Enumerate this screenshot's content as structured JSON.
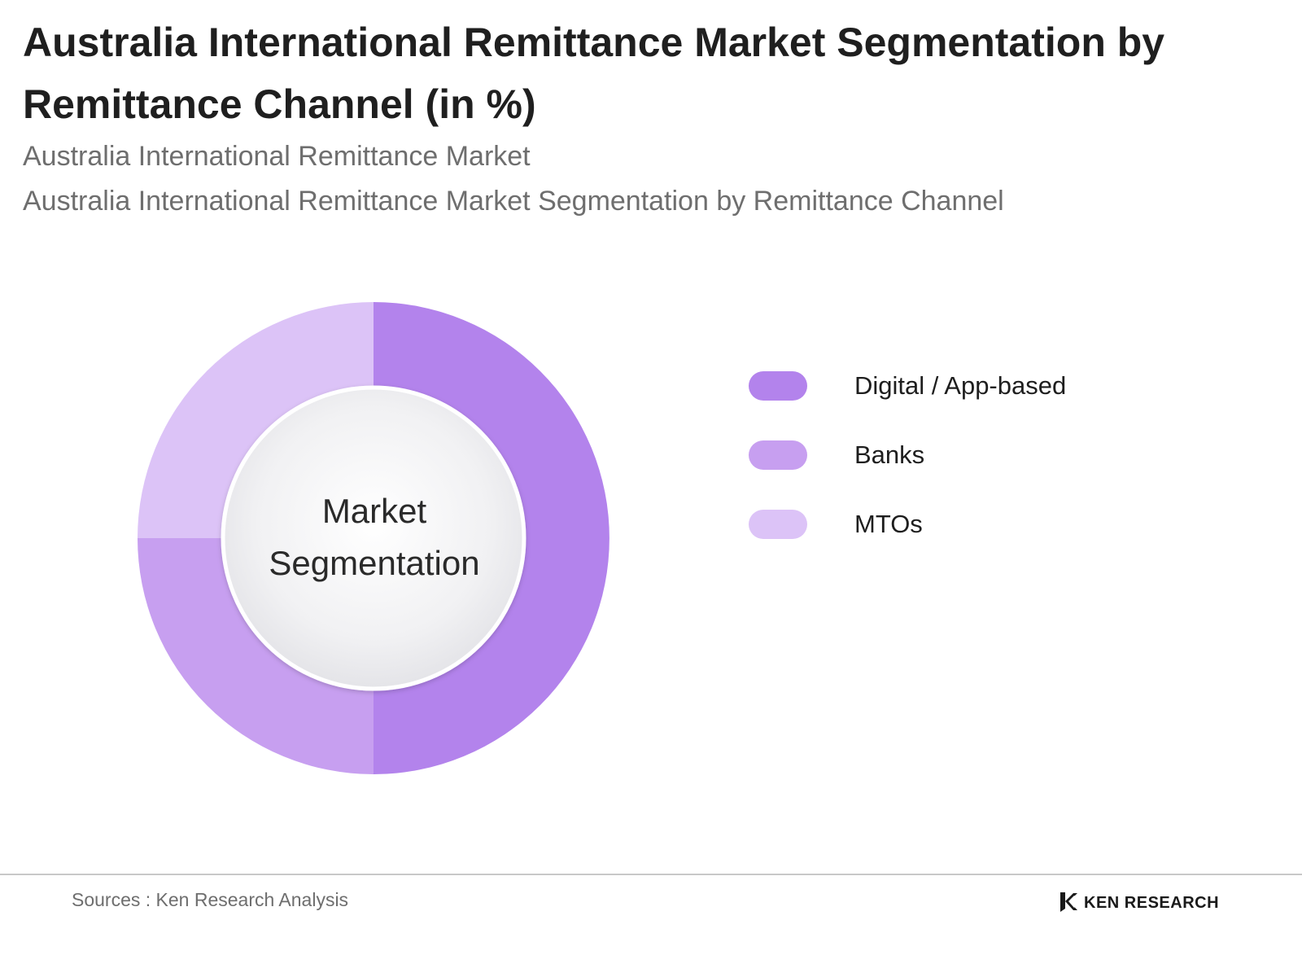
{
  "header": {
    "title": "Australia International Remittance Market Segmentation by Remittance Channel (in %)",
    "subtitle_1": "Australia International Remittance Market",
    "subtitle_2": "Australia International Remittance Market Segmentation by Remittance Channel"
  },
  "chart_data": {
    "type": "pie",
    "title": "Australia International Remittance Market Segmentation by Remittance Channel (in %)",
    "center_label_1": "Market",
    "center_label_2": "Segmentation",
    "series": [
      {
        "name": "Digital / App-based",
        "value": 50,
        "color": "#b383ec"
      },
      {
        "name": "Banks",
        "value": 25,
        "color": "#c79ff0"
      },
      {
        "name": "MTOs",
        "value": 25,
        "color": "#dcc3f7"
      }
    ],
    "legend_position": "right"
  },
  "footer": {
    "sources": "Sources : Ken Research Analysis",
    "brand": "KEN RESEARCH"
  }
}
